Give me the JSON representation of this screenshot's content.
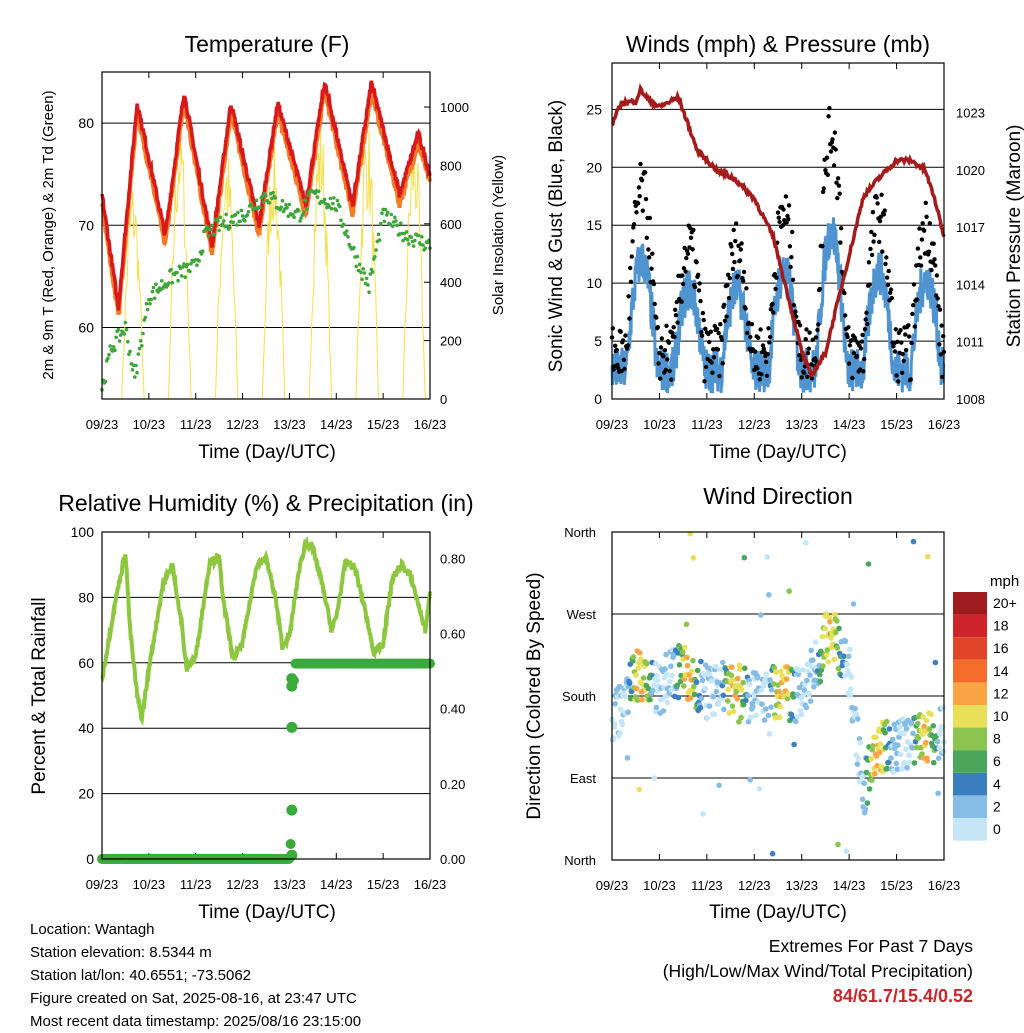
{
  "panels": {
    "temperature": {
      "title": "Temperature (F)",
      "ylabel_left": "2m & 9m T (Red, Orange) & 2m Td (Green)",
      "ylabel_right": "Solar Insolation (Yellow)",
      "xlabel": "Time (Day/UTC)"
    },
    "winds": {
      "title": "Winds (mph) & Pressure (mb)",
      "ylabel_left": "Sonic Wind & Gust (Blue, Black)",
      "ylabel_right": "Station Pressure (Maroon)",
      "xlabel": "Time (Day/UTC)"
    },
    "humidity": {
      "title": "Relative Humidity (%) & Precipitation (in)",
      "ylabel_left": "Percent & Total Rainfall",
      "xlabel": "Time (Day/UTC)"
    },
    "direction": {
      "title": "Wind Direction",
      "ylabel_left": "Direction (Colored By Speed)",
      "xlabel": "Time (Day/UTC)",
      "legend_title": "mph"
    }
  },
  "station": {
    "location": "Location: Wantagh",
    "elevation": "Station elevation: 8.5344 m",
    "latlon": "Station lat/lon: 40.6551; -73.5062",
    "created": "Figure created on Sat, 2025-08-16, at 23:47 UTC",
    "latest": "Most recent data timestamp: 2025/08/16 23:15:00"
  },
  "extremes": {
    "title": "Extremes For Past 7 Days",
    "subtitle": "(High/Low/Max Wind/Total Precipitation)",
    "values": "84/61.7/15.4/0.52"
  },
  "colors": {
    "temp_2m": "#d7191c",
    "temp_9m": "#f47a24",
    "dewpoint": "#3fa53a",
    "solar": "#f5df4d",
    "wind": "#4f94d0",
    "gust": "#000000",
    "pressure": "#a31b1b",
    "rh": "#8dc63f",
    "precip": "#3aab3a"
  },
  "chart_data": [
    {
      "type": "line",
      "id": "temperature",
      "x_ticks": [
        "09/23",
        "10/23",
        "11/23",
        "12/23",
        "13/23",
        "14/23",
        "15/23",
        "16/23"
      ],
      "xlim_days": [
        0,
        7
      ],
      "ylim": [
        53,
        85
      ],
      "y_ticks": [
        60,
        70,
        80
      ],
      "y2lim": [
        0,
        1120
      ],
      "y2_ticks": [
        0,
        200,
        400,
        600,
        800,
        1000
      ],
      "daily_high": [
        82,
        83,
        82,
        82,
        84,
        84,
        79
      ],
      "daily_low": [
        62,
        69,
        68,
        70,
        72,
        72,
        73
      ],
      "dewpoint_points": [
        [
          0,
          54
        ],
        [
          0.2,
          58
        ],
        [
          0.5,
          60
        ],
        [
          0.7,
          55
        ],
        [
          1.0,
          63
        ],
        [
          1.5,
          65
        ],
        [
          2.0,
          66
        ],
        [
          2.2,
          69
        ],
        [
          2.5,
          70
        ],
        [
          3.0,
          71
        ],
        [
          3.5,
          73
        ],
        [
          3.8,
          72
        ],
        [
          4.2,
          71
        ],
        [
          4.5,
          73
        ],
        [
          5.0,
          72
        ],
        [
          5.4,
          67
        ],
        [
          5.7,
          64
        ],
        [
          6.0,
          71
        ],
        [
          6.5,
          69
        ],
        [
          7.0,
          68
        ]
      ],
      "solar_peak": [
        760,
        980,
        880,
        900,
        980,
        980,
        940
      ]
    },
    {
      "type": "line",
      "id": "winds",
      "x_ticks": [
        "09/23",
        "10/23",
        "11/23",
        "12/23",
        "13/23",
        "14/23",
        "15/23",
        "16/23"
      ],
      "xlim_days": [
        0,
        7
      ],
      "ylim": [
        0,
        29
      ],
      "y_ticks": [
        0,
        5,
        10,
        15,
        20,
        25
      ],
      "y2lim": [
        1008,
        1025.6
      ],
      "y2_ticks": [
        1008,
        1011,
        1014,
        1017,
        1020,
        1023
      ],
      "gust_daily_peak": [
        19,
        14,
        14,
        17,
        24,
        17,
        16
      ],
      "pressure_points": [
        [
          0,
          1022.4
        ],
        [
          0.2,
          1023.5
        ],
        [
          0.5,
          1023.6
        ],
        [
          0.6,
          1024.2
        ],
        [
          0.8,
          1023.6
        ],
        [
          1.0,
          1023.3
        ],
        [
          1.4,
          1023.8
        ],
        [
          1.8,
          1021.0
        ],
        [
          2.2,
          1020.0
        ],
        [
          2.6,
          1019.5
        ],
        [
          3.0,
          1018.5
        ],
        [
          3.4,
          1016.5
        ],
        [
          3.8,
          1012.5
        ],
        [
          4.0,
          1010.5
        ],
        [
          4.2,
          1009.2
        ],
        [
          4.5,
          1010.4
        ],
        [
          4.7,
          1012.5
        ],
        [
          5.0,
          1015.5
        ],
        [
          5.3,
          1018.6
        ],
        [
          5.6,
          1019.5
        ],
        [
          6.0,
          1020.5
        ],
        [
          6.3,
          1020.5
        ],
        [
          6.6,
          1020.0
        ],
        [
          6.8,
          1018.5
        ],
        [
          7.0,
          1016.5
        ]
      ]
    },
    {
      "type": "line",
      "id": "humidity",
      "x_ticks": [
        "09/23",
        "10/23",
        "11/23",
        "12/23",
        "13/23",
        "14/23",
        "15/23",
        "16/23"
      ],
      "xlim_days": [
        0,
        7
      ],
      "ylim": [
        0,
        100
      ],
      "y_ticks": [
        0,
        20,
        40,
        60,
        80,
        100
      ],
      "y2lim": [
        0,
        0.87
      ],
      "y2_ticks": [
        0.0,
        0.2,
        0.4,
        0.6,
        0.8
      ],
      "rh_points": [
        [
          0,
          55
        ],
        [
          0.3,
          80
        ],
        [
          0.5,
          94
        ],
        [
          0.6,
          70
        ],
        [
          0.75,
          50
        ],
        [
          0.85,
          43
        ],
        [
          1.0,
          58
        ],
        [
          1.3,
          84
        ],
        [
          1.5,
          90
        ],
        [
          1.7,
          72
        ],
        [
          1.8,
          58
        ],
        [
          2.0,
          62
        ],
        [
          2.3,
          91
        ],
        [
          2.5,
          92
        ],
        [
          2.6,
          78
        ],
        [
          2.8,
          61
        ],
        [
          3.0,
          66
        ],
        [
          3.3,
          90
        ],
        [
          3.5,
          92
        ],
        [
          3.7,
          80
        ],
        [
          3.85,
          65
        ],
        [
          4.0,
          68
        ],
        [
          4.2,
          88
        ],
        [
          4.35,
          97
        ],
        [
          4.5,
          95
        ],
        [
          4.7,
          84
        ],
        [
          4.9,
          70
        ],
        [
          5.0,
          74
        ],
        [
          5.2,
          91
        ],
        [
          5.4,
          89
        ],
        [
          5.6,
          77
        ],
        [
          5.8,
          63
        ],
        [
          6.0,
          66
        ],
        [
          6.2,
          86
        ],
        [
          6.4,
          90
        ],
        [
          6.6,
          86
        ],
        [
          6.9,
          70
        ],
        [
          7.0,
          81
        ]
      ],
      "precip_points": [
        [
          0,
          0
        ],
        [
          4.0,
          0
        ],
        [
          4.02,
          0.01
        ],
        [
          4.04,
          0.13
        ],
        [
          4.06,
          0.35
        ],
        [
          4.08,
          0.46
        ],
        [
          4.1,
          0.48
        ],
        [
          4.12,
          0.52
        ],
        [
          7.0,
          0.52
        ]
      ]
    },
    {
      "type": "scatter",
      "id": "direction",
      "x_ticks": [
        "09/23",
        "10/23",
        "11/23",
        "12/23",
        "13/23",
        "14/23",
        "15/23",
        "16/23"
      ],
      "xlim_days": [
        0,
        7
      ],
      "y_ticks": [
        "North",
        "West",
        "South",
        "East",
        "North"
      ],
      "y_degrees": [
        360,
        270,
        180,
        90,
        0
      ],
      "color_scale": {
        "labels": [
          "20+",
          "18",
          "16",
          "14",
          "12",
          "10",
          "8",
          "6",
          "4",
          "2",
          "0"
        ],
        "colors": [
          "#9e1b1f",
          "#cc2428",
          "#e0452a",
          "#f46d2b",
          "#f9a546",
          "#e8e058",
          "#8cc450",
          "#4ba65c",
          "#3b7fc0",
          "#86bde6",
          "#c5e6f7"
        ]
      }
    }
  ]
}
